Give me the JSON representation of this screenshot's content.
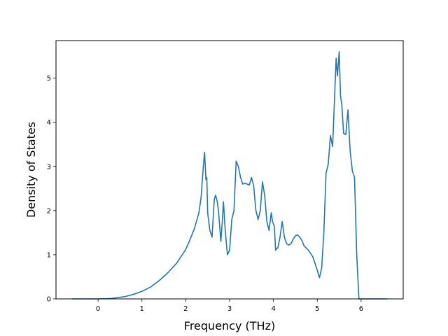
{
  "chart_data": {
    "type": "line",
    "title": "",
    "xlabel": "Frequency (THz)",
    "ylabel": "Density of States",
    "xlim": [
      -0.96,
      6.96
    ],
    "ylim": [
      0,
      5.85
    ],
    "xticks": [
      0,
      1,
      2,
      3,
      4,
      5,
      6
    ],
    "yticks": [
      0,
      1,
      2,
      3,
      4,
      5
    ],
    "xtick_labels": [
      "0",
      "1",
      "2",
      "3",
      "4",
      "5",
      "6"
    ],
    "ytick_labels": [
      "0",
      "1",
      "2",
      "3",
      "4",
      "5"
    ],
    "grid": false,
    "legend": "none",
    "series": [
      {
        "color": "#1f77b4",
        "x": [
          -0.6,
          0.0,
          0.3,
          0.6,
          0.8,
          1.0,
          1.2,
          1.4,
          1.6,
          1.8,
          2.0,
          2.1,
          2.2,
          2.3,
          2.35,
          2.4,
          2.43,
          2.46,
          2.48,
          2.5,
          2.55,
          2.6,
          2.65,
          2.68,
          2.72,
          2.75,
          2.8,
          2.83,
          2.86,
          2.9,
          2.95,
          3.0,
          3.05,
          3.1,
          3.15,
          3.2,
          3.25,
          3.3,
          3.35,
          3.4,
          3.45,
          3.5,
          3.55,
          3.6,
          3.65,
          3.7,
          3.75,
          3.8,
          3.85,
          3.9,
          3.95,
          3.98,
          4.02,
          4.05,
          4.08,
          4.1,
          4.15,
          4.2,
          4.25,
          4.3,
          4.35,
          4.4,
          4.45,
          4.5,
          4.55,
          4.6,
          4.65,
          4.7,
          4.8,
          4.9,
          4.95,
          5.0,
          5.05,
          5.1,
          5.15,
          5.2,
          5.25,
          5.3,
          5.35,
          5.4,
          5.43,
          5.46,
          5.5,
          5.53,
          5.56,
          5.6,
          5.65,
          5.7,
          5.75,
          5.8,
          5.85,
          5.9,
          5.95,
          5.98,
          6.0,
          6.05,
          6.6
        ],
        "y": [
          0.0,
          0.0,
          0.01,
          0.05,
          0.1,
          0.17,
          0.27,
          0.42,
          0.6,
          0.82,
          1.12,
          1.35,
          1.6,
          1.95,
          2.3,
          3.0,
          3.32,
          2.7,
          2.75,
          1.95,
          1.55,
          1.4,
          2.25,
          2.35,
          2.2,
          1.95,
          1.3,
          1.7,
          2.2,
          1.55,
          1.0,
          1.1,
          1.8,
          2.0,
          3.12,
          3.0,
          2.75,
          2.6,
          2.62,
          2.6,
          2.58,
          2.75,
          2.55,
          2.0,
          1.8,
          2.0,
          2.65,
          2.35,
          1.75,
          1.55,
          1.95,
          1.75,
          1.65,
          1.1,
          1.15,
          1.15,
          1.4,
          1.75,
          1.4,
          1.25,
          1.22,
          1.25,
          1.35,
          1.43,
          1.45,
          1.4,
          1.32,
          1.2,
          1.1,
          0.95,
          0.8,
          0.65,
          0.48,
          0.7,
          1.5,
          2.85,
          3.05,
          3.7,
          3.45,
          4.7,
          5.45,
          5.05,
          5.6,
          4.6,
          4.4,
          3.75,
          3.72,
          4.28,
          3.35,
          2.9,
          2.75,
          1.0,
          0.0,
          0.0,
          0.0,
          0.0,
          0.0
        ]
      }
    ]
  }
}
